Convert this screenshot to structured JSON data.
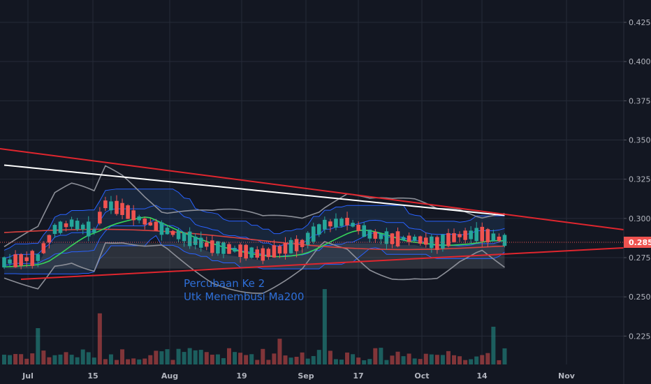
{
  "chart_data": {
    "type": "candlestick",
    "y_ticks": [
      "0.425",
      "0.400",
      "0.375",
      "0.350",
      "0.325",
      "0.300",
      "0.275",
      "0.250",
      "0.225"
    ],
    "x_ticks": [
      "Jul",
      "15",
      "Aug",
      "19",
      "Sep",
      "17",
      "Oct",
      "14",
      "Nov"
    ],
    "current_price": "0.285",
    "annotation": [
      "Percubaan Ke 2",
      "Utk Menembusi Ma200"
    ],
    "colors": {
      "background": "#131722",
      "grid": "#262b38",
      "up": "#26a69a",
      "down": "#ef5350",
      "trendline": "#e0262e",
      "ma200": "#ffffff",
      "ma_green": "#36d65a",
      "ma_red": "#d9413f",
      "bollinger": "#8c8f98",
      "envelope": "#2962ff",
      "annotation": "#2e6fd8"
    }
  }
}
